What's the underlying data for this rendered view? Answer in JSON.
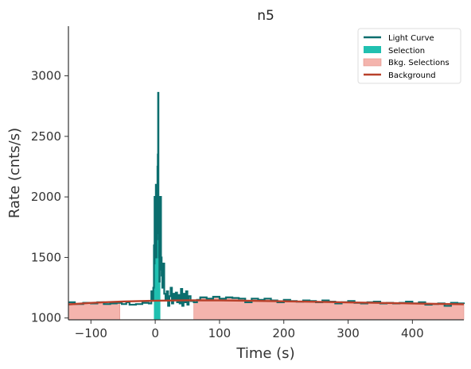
{
  "chart_data": {
    "type": "line",
    "title": "n5",
    "xlabel": "Time (s)",
    "ylabel": "Rate (cnts/s)",
    "xlim": [
      -135,
      480
    ],
    "ylim": [
      985,
      3410
    ],
    "xticks": [
      -100,
      0,
      100,
      200,
      300,
      400
    ],
    "yticks": [
      1000,
      1500,
      2000,
      2500,
      3000
    ],
    "xtick_labels": [
      "−100",
      "0",
      "100",
      "200",
      "300",
      "400"
    ],
    "ytick_labels": [
      "1000",
      "1500",
      "2000",
      "2500",
      "3000"
    ],
    "grid": false,
    "legend_position": "top-right",
    "colors": {
      "light_curve": "#0b6e6e",
      "selection": "#20c0b0",
      "bkg_selection": "#f4b4ad",
      "bkg_selection_edge": "#e08f87",
      "background": "#b8402a"
    },
    "legend": [
      {
        "label": "Light Curve",
        "kind": "line",
        "color": "#0b6e6e"
      },
      {
        "label": "Selection",
        "kind": "patch",
        "color": "#20c0b0"
      },
      {
        "label": "Bkg. Selections",
        "kind": "patch",
        "color": "#f4b4ad"
      },
      {
        "label": "Background",
        "kind": "line",
        "color": "#b8402a"
      }
    ],
    "selection": {
      "x_range": [
        -2,
        8
      ]
    },
    "bkg_selections": [
      {
        "x_range": [
          -135,
          -55
        ]
      },
      {
        "x_range": [
          60,
          480
        ]
      }
    ],
    "background_fit": {
      "x": [
        -135,
        -100,
        -50,
        0,
        50,
        100,
        150,
        200,
        250,
        300,
        350,
        400,
        450,
        480
      ],
      "y": [
        1112,
        1125,
        1136,
        1143,
        1146,
        1145,
        1142,
        1138,
        1134,
        1129,
        1125,
        1120,
        1116,
        1113
      ]
    },
    "light_curve": {
      "x": [
        -135,
        -125,
        -112,
        -100,
        -90,
        -80,
        -70,
        -60,
        -52,
        -45,
        -40,
        -30,
        -20,
        -10,
        -6,
        -4,
        -3,
        -2,
        -1.5,
        -1,
        0,
        0.5,
        1,
        1.5,
        2,
        2.5,
        3,
        3.5,
        4,
        4.5,
        5,
        5.5,
        6,
        6.5,
        7,
        7.5,
        8,
        9,
        10,
        11,
        12,
        14,
        16,
        18,
        20,
        22,
        24,
        26,
        28,
        30,
        32,
        34,
        36,
        38,
        40,
        42,
        44,
        46,
        48,
        50,
        52,
        55,
        60,
        65,
        70,
        80,
        90,
        100,
        110,
        120,
        130,
        140,
        150,
        160,
        170,
        180,
        190,
        200,
        210,
        220,
        230,
        240,
        250,
        260,
        270,
        280,
        290,
        300,
        310,
        320,
        330,
        340,
        350,
        360,
        370,
        380,
        390,
        400,
        410,
        420,
        430,
        440,
        450,
        460,
        470,
        480
      ],
      "y": [
        1130,
        1115,
        1125,
        1120,
        1130,
        1115,
        1120,
        1125,
        1115,
        1130,
        1110,
        1115,
        1125,
        1120,
        1220,
        1150,
        1250,
        1600,
        1450,
        2000,
        1700,
        1900,
        2100,
        1500,
        2000,
        1650,
        1800,
        2250,
        2350,
        2860,
        1700,
        2000,
        1500,
        1300,
        1550,
        1400,
        2000,
        1500,
        1350,
        1250,
        1450,
        1200,
        1150,
        1220,
        1100,
        1180,
        1250,
        1120,
        1200,
        1150,
        1210,
        1130,
        1190,
        1120,
        1240,
        1100,
        1200,
        1130,
        1220,
        1110,
        1180,
        1140,
        1130,
        1150,
        1170,
        1160,
        1175,
        1160,
        1170,
        1165,
        1160,
        1130,
        1160,
        1150,
        1160,
        1145,
        1130,
        1150,
        1140,
        1135,
        1145,
        1140,
        1130,
        1145,
        1135,
        1120,
        1130,
        1140,
        1125,
        1120,
        1130,
        1135,
        1120,
        1125,
        1120,
        1125,
        1135,
        1120,
        1130,
        1110,
        1115,
        1120,
        1100,
        1125,
        1120,
        1115
      ]
    }
  }
}
